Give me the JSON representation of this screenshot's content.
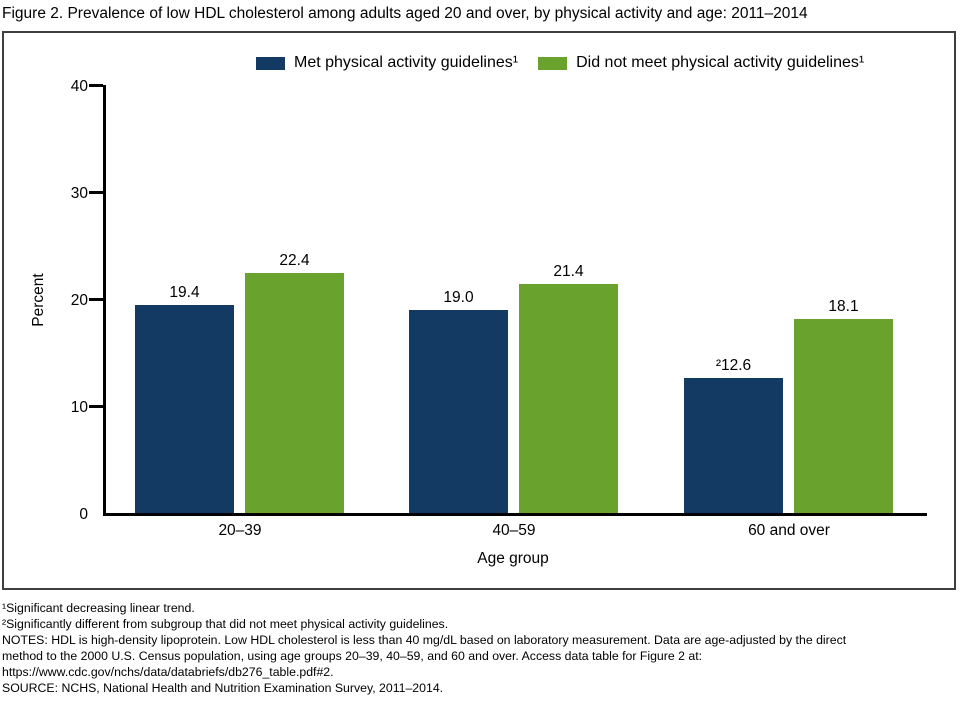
{
  "title": "Figure 2. Prevalence of low HDL cholesterol among adults aged 20 and over, by physical activity and age: 2011–2014",
  "colors": {
    "met_bar": "#123a63",
    "not_met_bar": "#6aa22e",
    "axis": "#000000",
    "box_border": "#3f3f3f"
  },
  "chart_data": {
    "type": "bar",
    "grouped": true,
    "title": "Prevalence of low HDL cholesterol among adults aged 20 and over, by physical activity and age: 2011–2014",
    "categories": [
      "20–39",
      "40–59",
      "60 and over"
    ],
    "series": [
      {
        "name": "Met physical activity guidelines¹",
        "color": "#123a63",
        "values": [
          19.4,
          19.0,
          12.6
        ],
        "bar_labels": [
          "19.4",
          "19.0",
          "²12.6"
        ]
      },
      {
        "name": "Did not meet physical activity guidelines¹",
        "color": "#6aa22e",
        "values": [
          22.4,
          21.4,
          18.1
        ],
        "bar_labels": [
          "22.4",
          "21.4",
          "18.1"
        ]
      }
    ],
    "xlabel": "Age group",
    "ylabel": "Percent",
    "ylim": [
      0,
      40
    ],
    "yticks": [
      0,
      10,
      20,
      30,
      40
    ],
    "grid": false,
    "legend_position": "top-center"
  },
  "legend": {
    "items": [
      {
        "label": "Met physical activity guidelines¹",
        "color": "#123a63"
      },
      {
        "label": "Did not meet physical activity guidelines¹",
        "color": "#6aa22e"
      }
    ]
  },
  "footnotes": [
    "¹Significant decreasing linear trend.",
    "²Significantly different from subgroup that did not meet physical activity guidelines.",
    "NOTES: HDL is high-density lipoprotein. Low HDL cholesterol is less than 40 mg/dL based on laboratory measurement. Data are age-adjusted by the direct",
    "method to the 2000 U.S. Census population, using age groups 20–39, 40–59, and 60 and over. Access data table for Figure 2 at:",
    "https://www.cdc.gov/nchs/data/databriefs/db276_table.pdf#2.",
    "SOURCE: NCHS, National Health and Nutrition Examination Survey, 2011–2014."
  ]
}
